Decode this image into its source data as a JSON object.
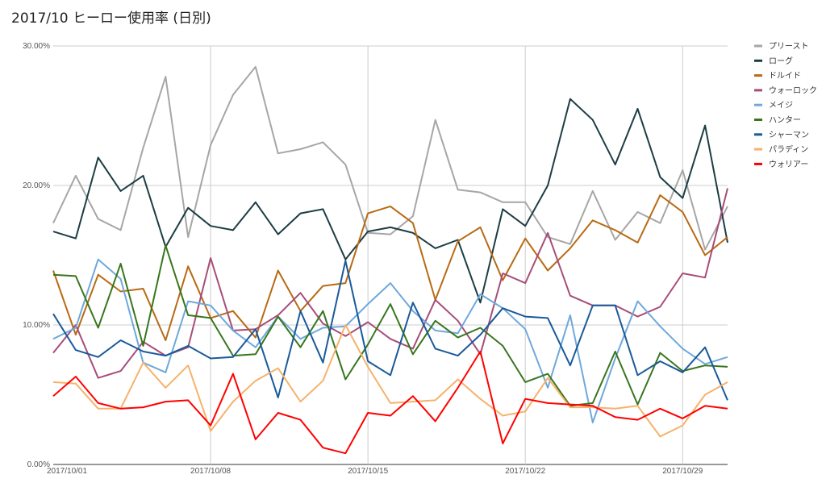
{
  "chart_data": {
    "type": "line",
    "title": "2017/10 ヒーロー使用率 (日別)",
    "x": [
      "2017/10/01",
      "2017/10/02",
      "2017/10/03",
      "2017/10/04",
      "2017/10/05",
      "2017/10/06",
      "2017/10/07",
      "2017/10/08",
      "2017/10/09",
      "2017/10/10",
      "2017/10/11",
      "2017/10/12",
      "2017/10/13",
      "2017/10/14",
      "2017/10/15",
      "2017/10/16",
      "2017/10/17",
      "2017/10/18",
      "2017/10/19",
      "2017/10/20",
      "2017/10/21",
      "2017/10/22",
      "2017/10/23",
      "2017/10/24",
      "2017/10/25",
      "2017/10/26",
      "2017/10/27",
      "2017/10/28",
      "2017/10/29",
      "2017/10/30",
      "2017/10/31"
    ],
    "x_tick_labels": [
      "2017/10/01",
      "2017/10/08",
      "2017/10/15",
      "2017/10/22",
      "2017/10/29"
    ],
    "y_tick_labels": [
      "0.00%",
      "10.00%",
      "20.00%",
      "30.00%"
    ],
    "ylim": [
      0,
      30
    ],
    "grid": true,
    "legend_position": "right",
    "series": [
      {
        "name": "プリースト",
        "color": "#a6a6a6",
        "values": [
          17.3,
          20.7,
          17.6,
          16.8,
          22.7,
          27.8,
          16.3,
          22.9,
          26.5,
          28.5,
          22.3,
          22.6,
          23.1,
          21.5,
          16.6,
          16.5,
          17.8,
          24.7,
          19.7,
          19.5,
          18.8,
          18.8,
          16.3,
          15.8,
          19.6,
          16.1,
          18.1,
          17.3,
          21.1,
          15.4,
          18.5
        ]
      },
      {
        "name": "ローグ",
        "color": "#1c3d44",
        "values": [
          16.7,
          16.2,
          22.0,
          19.6,
          20.7,
          15.6,
          18.4,
          17.1,
          16.8,
          18.8,
          16.5,
          18.0,
          18.3,
          14.7,
          16.7,
          17.0,
          16.6,
          15.5,
          16.1,
          11.6,
          18.3,
          17.1,
          20.0,
          26.2,
          24.7,
          21.5,
          25.5,
          20.6,
          19.1,
          24.3,
          15.9
        ]
      },
      {
        "name": "ドルイド",
        "color": "#b86a14",
        "values": [
          13.9,
          9.3,
          13.6,
          12.4,
          12.6,
          8.9,
          14.2,
          10.5,
          11.0,
          9.1,
          13.9,
          11.0,
          12.8,
          13.0,
          18.0,
          18.5,
          17.3,
          11.8,
          16.0,
          17.0,
          13.2,
          16.2,
          13.9,
          15.5,
          17.5,
          16.8,
          15.9,
          19.3,
          18.1,
          15.0,
          16.3
        ]
      },
      {
        "name": "ウォーロック",
        "color": "#a64d79",
        "values": [
          8.0,
          10.0,
          6.2,
          6.7,
          8.8,
          7.8,
          8.4,
          14.8,
          9.6,
          9.7,
          10.7,
          12.3,
          10.1,
          9.2,
          10.2,
          9.0,
          8.3,
          11.8,
          10.3,
          7.9,
          13.7,
          13.0,
          16.6,
          12.1,
          11.4,
          11.4,
          10.6,
          11.3,
          13.7,
          13.4,
          19.8
        ]
      },
      {
        "name": "メイジ",
        "color": "#6fa8dc",
        "values": [
          9.0,
          9.8,
          14.7,
          13.3,
          7.3,
          6.6,
          11.7,
          11.4,
          9.6,
          8.4,
          10.6,
          9.0,
          9.8,
          9.9,
          11.5,
          13.0,
          11.0,
          9.6,
          9.4,
          12.2,
          11.2,
          9.7,
          5.5,
          10.7,
          3.0,
          7.6,
          11.7,
          9.9,
          8.3,
          7.2,
          7.7
        ]
      },
      {
        "name": "ハンター",
        "color": "#38761d",
        "values": [
          13.6,
          13.5,
          9.8,
          14.4,
          8.5,
          15.7,
          10.7,
          10.5,
          7.8,
          7.9,
          10.6,
          8.4,
          11.0,
          6.1,
          8.6,
          11.5,
          7.9,
          10.3,
          9.1,
          9.8,
          8.5,
          5.9,
          6.5,
          4.2,
          4.4,
          8.1,
          4.3,
          8.0,
          6.7,
          7.1,
          7.0
        ]
      },
      {
        "name": "シャーマン",
        "color": "#1a5a9a",
        "values": [
          10.8,
          8.2,
          7.7,
          8.9,
          8.1,
          7.8,
          8.5,
          7.6,
          7.7,
          9.7,
          4.8,
          11.0,
          7.3,
          14.6,
          7.4,
          6.4,
          11.6,
          8.3,
          7.8,
          9.3,
          11.2,
          10.6,
          10.5,
          7.1,
          11.4,
          11.4,
          6.4,
          7.4,
          6.6,
          8.4,
          4.6
        ]
      },
      {
        "name": "パラディン",
        "color": "#f6b26b",
        "values": [
          5.9,
          5.8,
          4.0,
          4.0,
          7.3,
          5.5,
          7.1,
          2.4,
          4.5,
          6.0,
          6.9,
          4.5,
          6.0,
          10.0,
          7.0,
          4.4,
          4.5,
          4.6,
          6.1,
          4.7,
          3.5,
          3.8,
          6.2,
          4.1,
          4.1,
          4.0,
          4.2,
          2.0,
          2.8,
          5.0,
          5.9
        ]
      },
      {
        "name": "ウォリアー",
        "color": "#ff0000",
        "values": [
          4.9,
          6.3,
          4.4,
          4.0,
          4.1,
          4.5,
          4.6,
          2.8,
          6.5,
          1.8,
          3.7,
          3.2,
          1.2,
          0.8,
          3.7,
          3.5,
          4.9,
          3.1,
          5.5,
          8.1,
          1.5,
          4.7,
          4.4,
          4.3,
          4.2,
          3.4,
          3.2,
          4.0,
          3.3,
          4.2,
          4.0
        ]
      }
    ]
  }
}
